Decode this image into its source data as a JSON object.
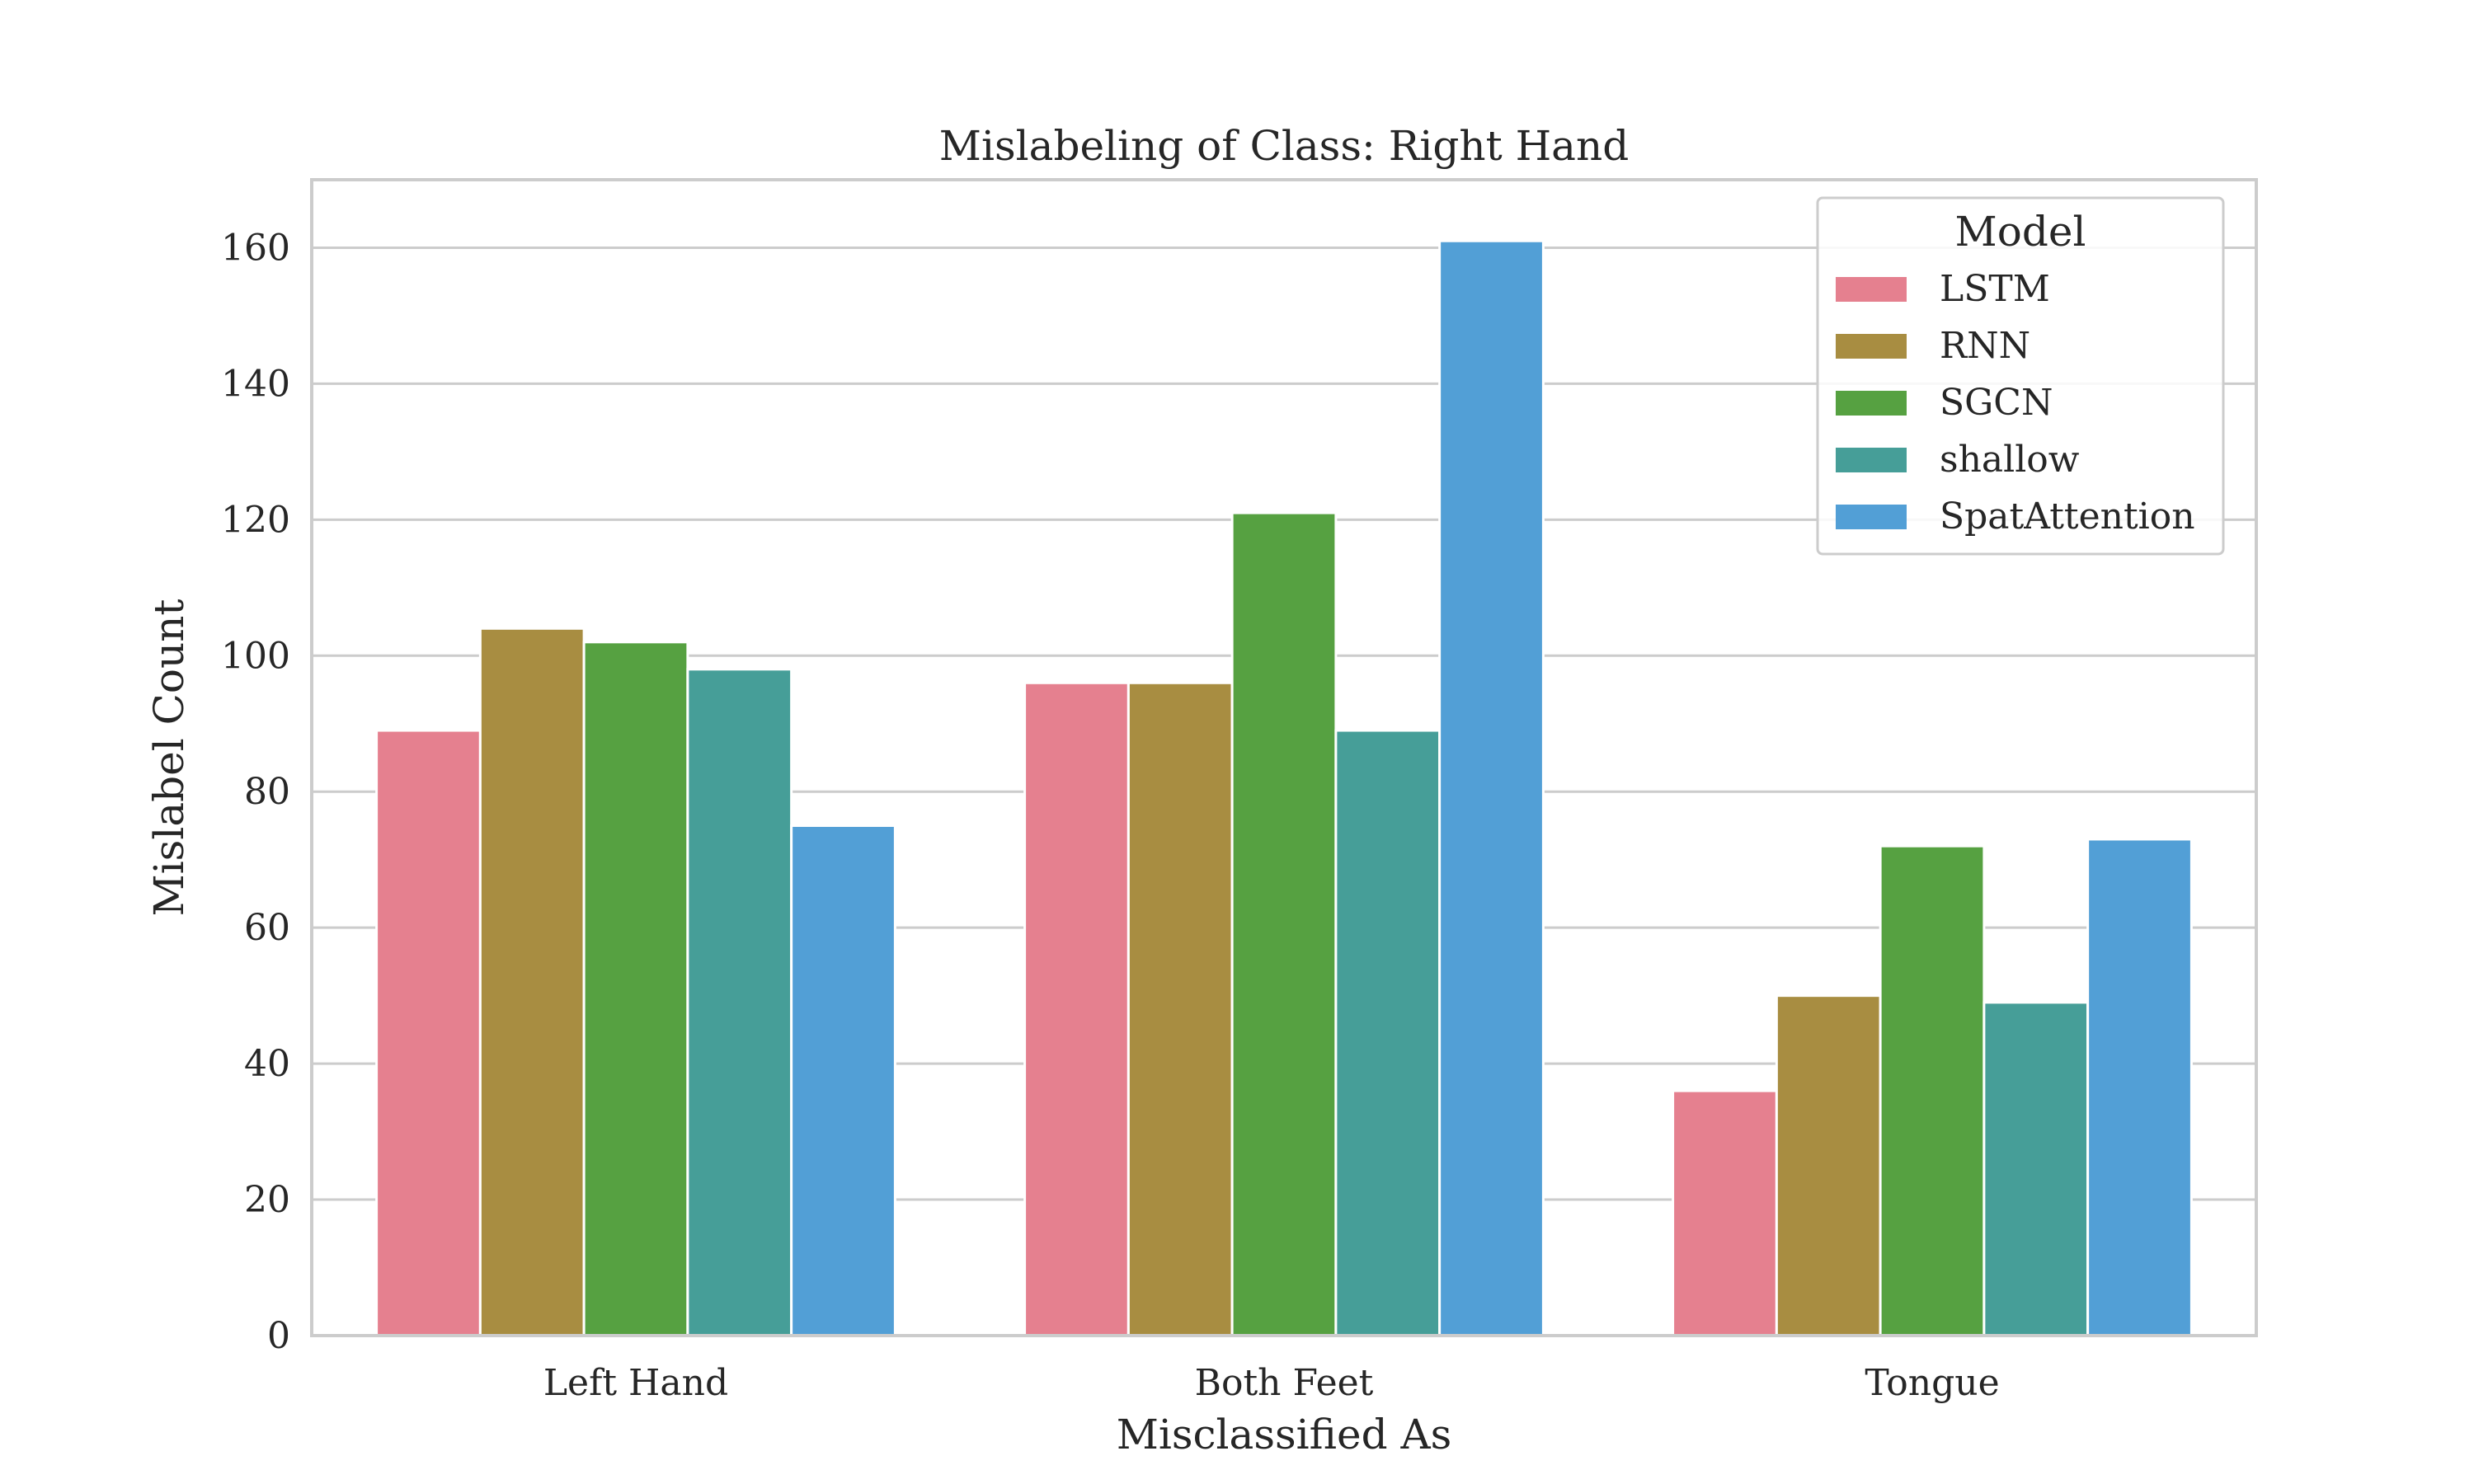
{
  "chart_data": {
    "type": "bar",
    "title": "Mislabeling of Class: Right Hand",
    "xlabel": "Misclassified As",
    "ylabel": "Mislabel Count",
    "categories": [
      "Left Hand",
      "Both Feet",
      "Tongue"
    ],
    "series": [
      {
        "name": "LSTM",
        "color": "#e5808f",
        "values": [
          89,
          96,
          36
        ]
      },
      {
        "name": "RNN",
        "color": "#a88d41",
        "values": [
          104,
          96,
          50
        ]
      },
      {
        "name": "SGCN",
        "color": "#56a141",
        "values": [
          102,
          121,
          72
        ]
      },
      {
        "name": "shallow",
        "color": "#469e98",
        "values": [
          98,
          89,
          49
        ]
      },
      {
        "name": "SpatAttention",
        "color": "#529fd6",
        "values": [
          75,
          161,
          73
        ]
      }
    ],
    "ylim": [
      0,
      170
    ],
    "yticks": [
      0,
      20,
      40,
      60,
      80,
      100,
      120,
      140,
      160
    ],
    "grid": true,
    "legend": {
      "title": "Model",
      "position": "top-right"
    }
  }
}
